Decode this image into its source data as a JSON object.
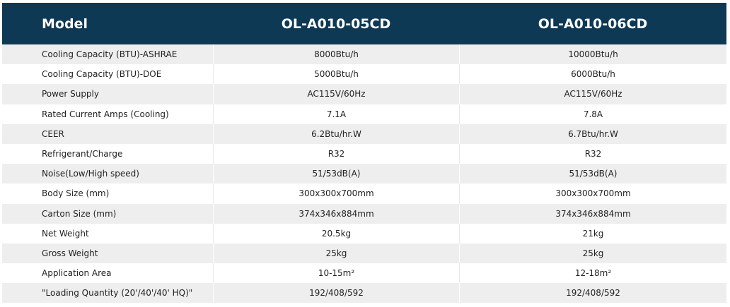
{
  "header": {
    "label": "Model",
    "models": [
      "OL-A010-05CD",
      "OL-A010-06CD"
    ]
  },
  "rows": [
    {
      "label": "Cooling Capacity (BTU)-ASHRAE",
      "values": [
        "8000Btu/h",
        "10000Btu/h"
      ]
    },
    {
      "label": "Cooling Capacity (BTU)-DOE",
      "values": [
        "5000Btu/h",
        "6000Btu/h"
      ]
    },
    {
      "label": "Power Supply",
      "values": [
        "AC115V/60Hz",
        "AC115V/60Hz"
      ]
    },
    {
      "label": "Rated Current Amps (Cooling)",
      "values": [
        "7.1A",
        "7.8A"
      ]
    },
    {
      "label": "CEER",
      "values": [
        "6.2Btu/hr.W",
        "6.7Btu/hr.W"
      ]
    },
    {
      "label": "Refrigerant/Charge",
      "values": [
        "R32",
        "R32"
      ]
    },
    {
      "label": "Noise(Low/High speed)",
      "values": [
        "51/53dB(A)",
        "51/53dB(A)"
      ]
    },
    {
      "label": "Body Size (mm)",
      "values": [
        "300x300x700mm",
        "300x300x700mm"
      ]
    },
    {
      "label": "Carton Size (mm)",
      "values": [
        "374x346x884mm",
        "374x346x884mm"
      ]
    },
    {
      "label": "Net Weight",
      "values": [
        "20.5kg",
        "21kg"
      ]
    },
    {
      "label": "Gross Weight",
      "values": [
        "25kg",
        "25kg"
      ]
    },
    {
      "label": "Application Area",
      "values": [
        "10-15m²",
        "12-18m²"
      ]
    },
    {
      "label": "\"Loading Quantity (20'/40'/40' HQ)\"",
      "values": [
        "192/408/592",
        "192/408/592"
      ]
    }
  ],
  "colors": {
    "header_bg": "#0e3954",
    "header_text": "#ffffff",
    "stripe": "#eeeeee"
  }
}
